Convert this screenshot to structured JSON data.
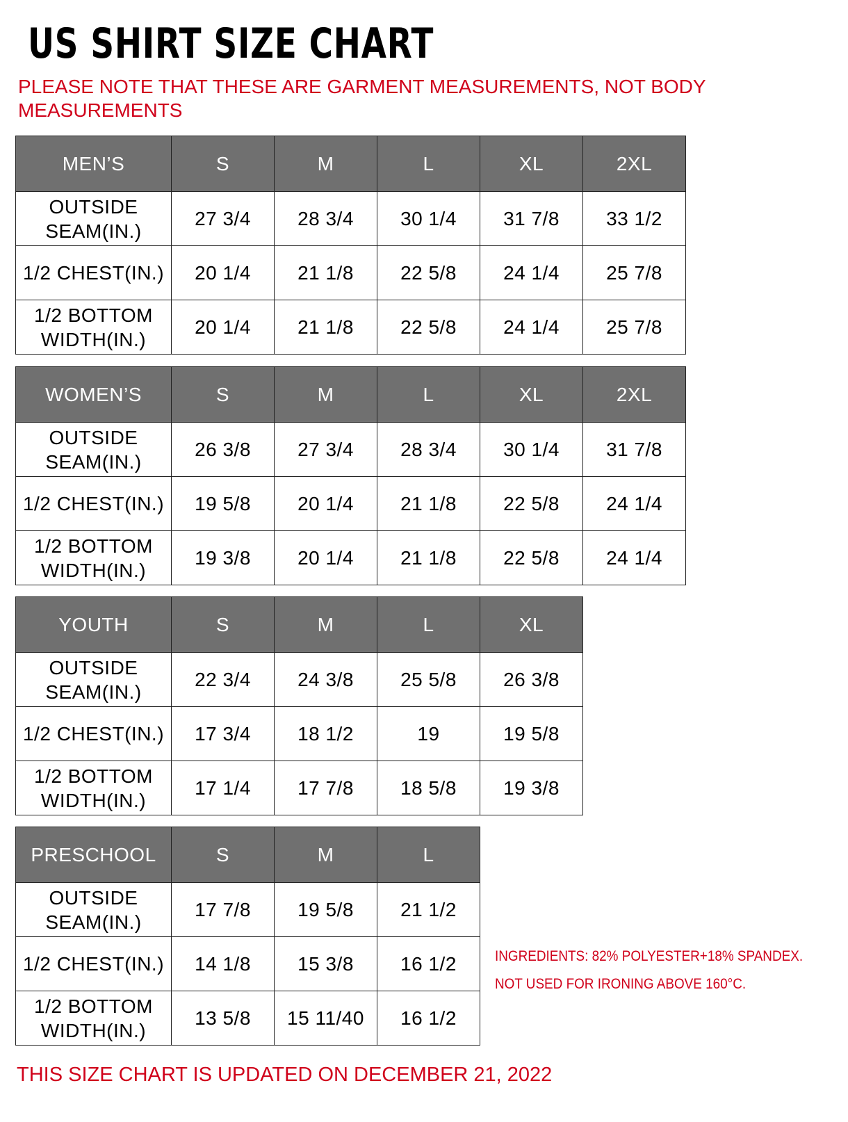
{
  "title": "US SHIRT SIZE CHART",
  "note": "PLEASE NOTE THAT THESE ARE GARMENT MEASUREMENTS, NOT BODY MEASUREMENTS",
  "colors": {
    "header_bg": "#707070",
    "accent_red": "#d0021b"
  },
  "tables": [
    {
      "category": "MEN’S",
      "sizes": [
        "S",
        "M",
        "L",
        "XL",
        "2XL"
      ],
      "rows": [
        {
          "label": "OUTSIDE SEAM(IN.)",
          "values": [
            "27 3/4",
            "28 3/4",
            "30 1/4",
            "31 7/8",
            "33 1/2"
          ]
        },
        {
          "label": "1/2 CHEST(IN.)",
          "values": [
            "20 1/4",
            "21 1/8",
            "22 5/8",
            "24 1/4",
            "25 7/8"
          ]
        },
        {
          "label": "1/2 BOTTOM WIDTH(IN.)",
          "values": [
            "20 1/4",
            "21 1/8",
            "22 5/8",
            "24 1/4",
            "25 7/8"
          ]
        }
      ]
    },
    {
      "category": "WOMEN’S",
      "sizes": [
        "S",
        "M",
        "L",
        "XL",
        "2XL"
      ],
      "rows": [
        {
          "label": "OUTSIDE SEAM(IN.)",
          "values": [
            "26 3/8",
            "27 3/4",
            "28 3/4",
            "30 1/4",
            "31 7/8"
          ]
        },
        {
          "label": "1/2 CHEST(IN.)",
          "values": [
            "19 5/8",
            "20 1/4",
            "21 1/8",
            "22 5/8",
            "24 1/4"
          ]
        },
        {
          "label": "1/2 BOTTOM WIDTH(IN.)",
          "values": [
            "19 3/8",
            "20 1/4",
            "21 1/8",
            "22 5/8",
            "24 1/4"
          ]
        }
      ]
    },
    {
      "category": "YOUTH",
      "sizes": [
        "S",
        "M",
        "L",
        "XL"
      ],
      "rows": [
        {
          "label": "OUTSIDE SEAM(IN.)",
          "values": [
            "22 3/4",
            "24 3/8",
            "25 5/8",
            "26 3/8"
          ]
        },
        {
          "label": "1/2 CHEST(IN.)",
          "values": [
            "17 3/4",
            "18 1/2",
            "19",
            "19 5/8"
          ]
        },
        {
          "label": "1/2 BOTTOM WIDTH(IN.)",
          "values": [
            "17 1/4",
            "17 7/8",
            "18 5/8",
            "19 3/8"
          ]
        }
      ]
    },
    {
      "category": "PRESCHOOL",
      "sizes": [
        "S",
        "M",
        "L"
      ],
      "rows": [
        {
          "label": "OUTSIDE SEAM(IN.)",
          "values": [
            "17 7/8",
            "19 5/8",
            "21 1/2"
          ]
        },
        {
          "label": "1/2 CHEST(IN.)",
          "values": [
            "14 1/8",
            "15 3/8",
            "16 1/2"
          ]
        },
        {
          "label": "1/2 BOTTOM WIDTH(IN.)",
          "values": [
            "13 5/8",
            "15 11/40",
            "16 1/2"
          ]
        }
      ]
    }
  ],
  "ingredients": [
    "INGREDIENTS: 82% POLYESTER+18% SPANDEX.",
    "NOT USED FOR IRONING ABOVE 160°C."
  ],
  "footer": "THIS SIZE CHART IS UPDATED ON DECEMBER 21, 2022"
}
